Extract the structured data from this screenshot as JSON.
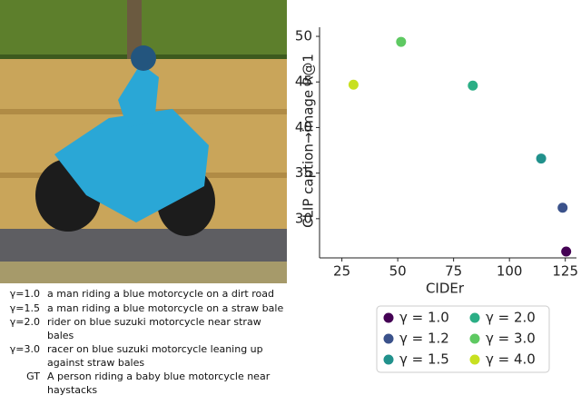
{
  "chart_data": {
    "type": "scatter",
    "xlabel": "CIDEr",
    "ylabel": "CLIP caption→image R@1",
    "xlim": [
      15,
      130
    ],
    "ylim": [
      25.7,
      51
    ],
    "xticks": [
      25,
      50,
      75,
      100,
      125
    ],
    "yticks": [
      30,
      35,
      40,
      45,
      50
    ],
    "series": [
      {
        "name": "γ = 1.0",
        "color": "#440154",
        "x": [
          125.4
        ],
        "values": [
          26.4
        ]
      },
      {
        "name": "γ = 1.2",
        "color": "#3b528b",
        "x": [
          123.8
        ],
        "values": [
          31.2
        ]
      },
      {
        "name": "γ = 1.5",
        "color": "#21918c",
        "x": [
          114.2
        ],
        "values": [
          36.6
        ]
      },
      {
        "name": "γ = 2.0",
        "color": "#2bae85",
        "x": [
          83.6
        ],
        "values": [
          44.6
        ]
      },
      {
        "name": "γ = 3.0",
        "color": "#5ec962",
        "x": [
          51.5
        ],
        "values": [
          49.4
        ]
      },
      {
        "name": "γ = 4.0",
        "color": "#c8e020",
        "x": [
          30.2
        ],
        "values": [
          44.7
        ]
      }
    ],
    "legend": "below"
  },
  "captions": [
    {
      "label": "γ=1.0",
      "text": "a man riding a blue motorcycle on a dirt road"
    },
    {
      "label": "γ=1.5",
      "text": "a man riding a blue motorcycle on a straw bale"
    },
    {
      "label": "γ=2.0",
      "text": "rider on blue suzuki motorcycle near straw bales"
    },
    {
      "label": "γ=3.0",
      "text": "racer on blue suzuki motorcycle leaning up against straw bales"
    },
    {
      "label": "GT",
      "text": "A person riding a baby blue motorcycle near haystacks"
    }
  ]
}
